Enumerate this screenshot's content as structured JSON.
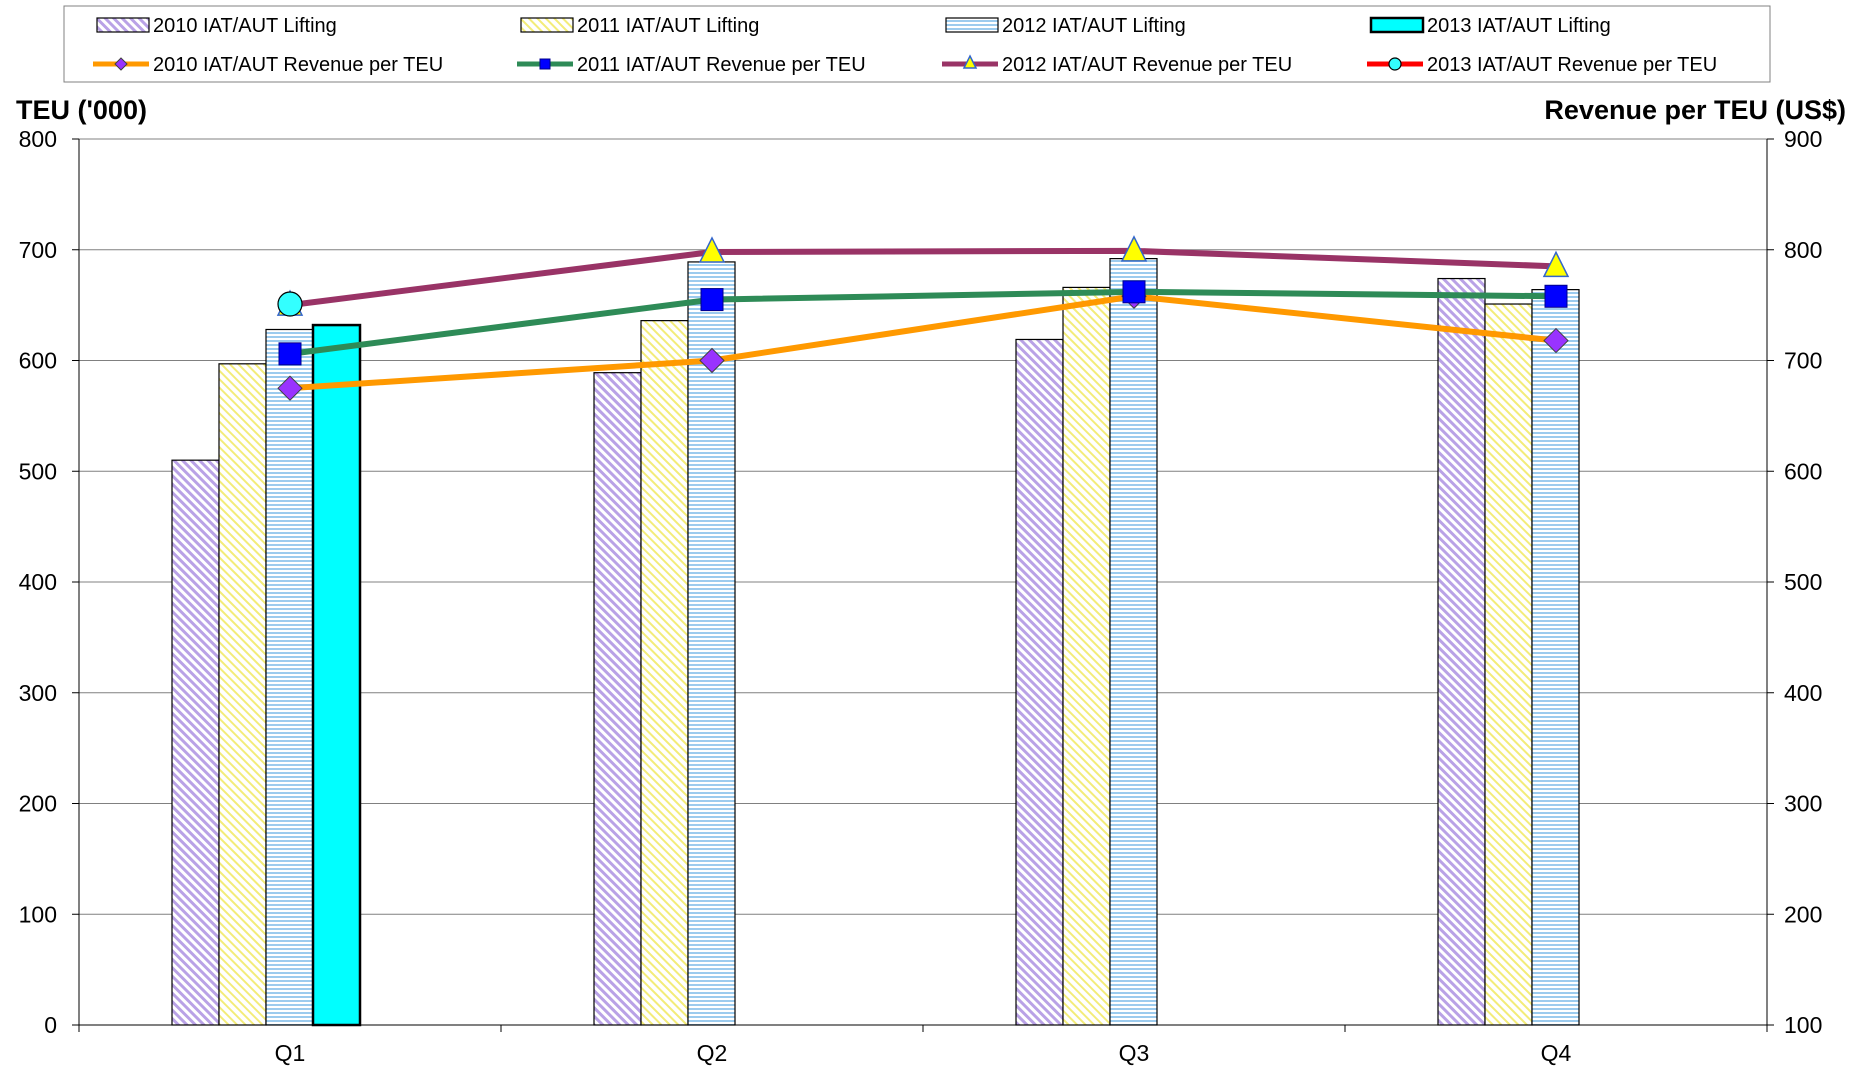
{
  "chart_data": {
    "type": "bar",
    "categories": [
      "Q1",
      "Q2",
      "Q3",
      "Q4"
    ],
    "ylabel_left": "TEU ('000)",
    "ylabel_right": "Revenue per TEU (US$)",
    "ylim_left": [
      0,
      800
    ],
    "ylim_right": [
      100,
      900
    ],
    "yticks_left": [
      "0",
      "100",
      "200",
      "300",
      "400",
      "500",
      "600",
      "700",
      "800"
    ],
    "yticks_right": [
      "100",
      "200",
      "300",
      "400",
      "500",
      "600",
      "700",
      "800",
      "900"
    ],
    "grid": true,
    "legend_position": "top",
    "bar_series": [
      {
        "name": "2010 IAT/AUT Lifting",
        "values": [
          510,
          589,
          619,
          674
        ],
        "color": "#b9a2e6",
        "fill": "diag"
      },
      {
        "name": "2011 IAT/AUT Lifting",
        "values": [
          597,
          636,
          666,
          651
        ],
        "color": "#f3ec79",
        "fill": "diag"
      },
      {
        "name": "2012 IAT/AUT Lifting",
        "values": [
          628,
          689,
          692,
          664
        ],
        "color": "#8fc2ea",
        "fill": "horiz"
      },
      {
        "name": "2013 IAT/AUT Lifting",
        "values": [
          632,
          null,
          null,
          null
        ],
        "color": "#00ffff",
        "fill": "solid"
      }
    ],
    "line_series": [
      {
        "name": "2010 IAT/AUT Revenue per TEU",
        "values": [
          675,
          700,
          758,
          718
        ],
        "color": "#ff9900",
        "marker": "diamond",
        "marker_color": "#9933ff"
      },
      {
        "name": "2011 IAT/AUT Revenue per TEU",
        "values": [
          706,
          755,
          762,
          758
        ],
        "color": "#2e8b57",
        "marker": "square",
        "marker_color": "#0000ff"
      },
      {
        "name": "2012 IAT/AUT Revenue per TEU",
        "values": [
          750,
          798,
          799,
          785
        ],
        "color": "#993366",
        "marker": "triangle",
        "marker_color": "#ffff00"
      },
      {
        "name": "2013 IAT/AUT Revenue per TEU",
        "values": [
          751,
          null,
          null,
          null
        ],
        "color": "#ff0000",
        "marker": "circle",
        "marker_color": "#33ffff"
      }
    ]
  }
}
